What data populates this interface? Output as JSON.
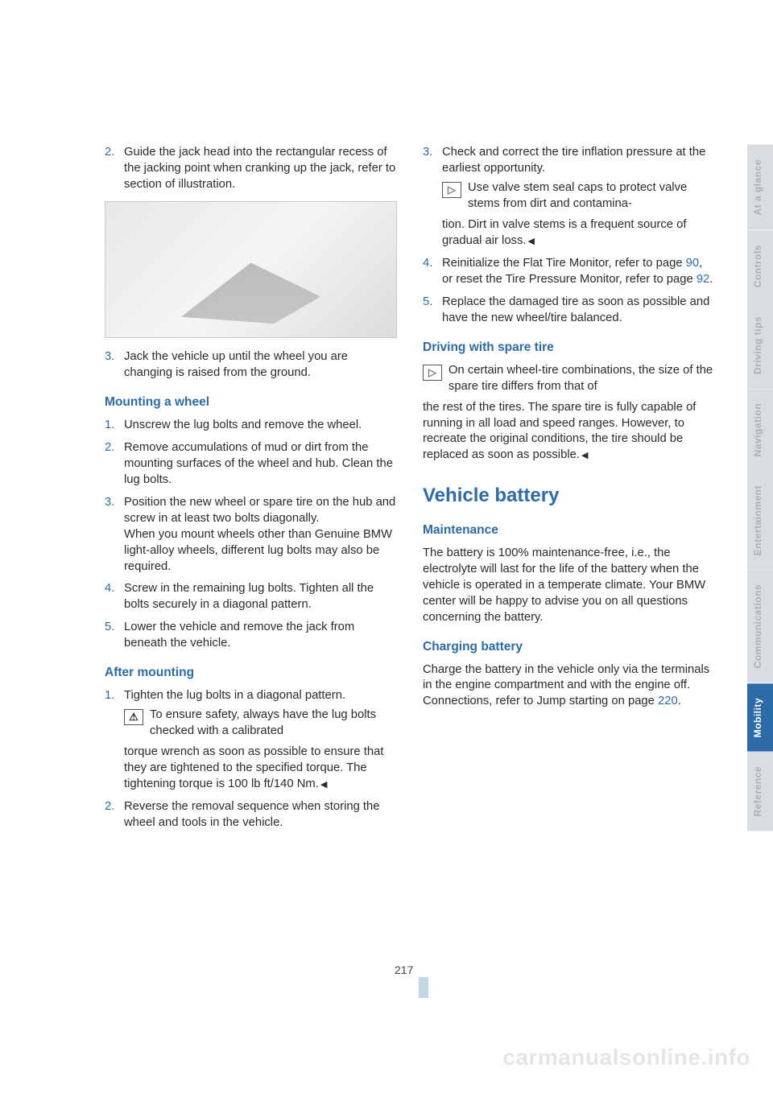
{
  "left": {
    "step2": "Guide the jack head into the rectangular recess of the jacking point when cranking up the jack, refer to section of illustration.",
    "step3": "Jack the vehicle up until the wheel you are changing is raised from the ground.",
    "mounting_title": "Mounting a wheel",
    "m1": "Unscrew the lug bolts and remove the wheel.",
    "m2": "Remove accumulations of mud or dirt from the mounting surfaces of the wheel and hub. Clean the lug bolts.",
    "m3a": "Position the new wheel or spare tire on the hub and screw in at least two bolts diagonally.",
    "m3b": "When you mount wheels other than Genuine BMW light-alloy wheels, different lug bolts may also be required.",
    "m4": "Screw in the remaining lug bolts. Tighten all the bolts securely in a diagonal pattern.",
    "m5": "Lower the vehicle and remove the jack from beneath the vehicle.",
    "after_title": "After mounting",
    "a1": "Tighten the lug bolts in a diagonal pattern.",
    "warn_lead": "To ensure safety, always have the lug bolts checked with a calibrated",
    "warn_rest": "torque wrench as soon as possible to ensure that they are tightened to the specified torque. The tightening torque is 100 lb ft/140 Nm.",
    "a2": "Reverse the removal sequence when storing the wheel and tools in the vehicle."
  },
  "right": {
    "r3": "Check and correct the tire inflation pressure at the earliest opportunity.",
    "note_lead": "Use valve stem seal caps to protect valve stems from dirt and contamina-",
    "note_rest": "tion. Dirt in valve stems is a frequent source of gradual air loss.",
    "r4a": "Reinitialize the Flat Tire Monitor, refer to page ",
    "r4_link1": "90",
    "r4b": ", or reset the Tire Pressure Monitor, refer to page ",
    "r4_link2": "92",
    "r4c": ".",
    "r5": "Replace the damaged tire as soon as possible and have the new wheel/tire balanced.",
    "spare_title": "Driving with spare tire",
    "spare_lead": "On certain wheel-tire combinations, the size of the spare tire differs from that of",
    "spare_rest": "the rest of the tires. The spare tire is fully capable of running in all load and speed ranges. However, to recreate the original conditions, the tire should be replaced as soon as possible.",
    "battery_title": "Vehicle battery",
    "maint_title": "Maintenance",
    "maint_body": "The battery is 100% maintenance-free, i.e., the electrolyte will last for the life of the battery when the vehicle is operated in a temperate climate. Your BMW center will be happy to advise you on all questions concerning the battery.",
    "charge_title": "Charging battery",
    "charge_a": "Charge the battery in the vehicle only via the terminals in the engine compartment and with the engine off. Connections, refer to Jump starting on page ",
    "charge_link": "220",
    "charge_b": "."
  },
  "tabs": [
    "At a glance",
    "Controls",
    "Driving tips",
    "Navigation",
    "Entertainment",
    "Communications",
    "Mobility",
    "Reference"
  ],
  "active_tab_index": 6,
  "page_number": "217",
  "watermark": "carmanualsonline.info",
  "colors": {
    "accent": "#2d6ba8",
    "tab_inactive_bg": "#d9dde0",
    "tab_inactive_fg": "#a9b0b6"
  }
}
